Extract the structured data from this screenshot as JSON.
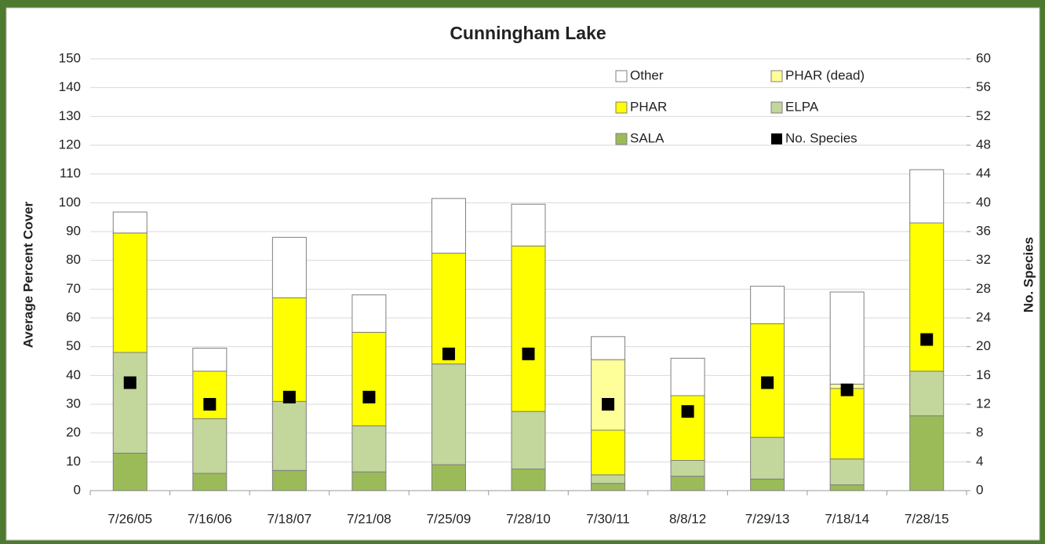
{
  "chart_data": {
    "type": "bar",
    "title": "Cunningham Lake",
    "y_label": "Average Percent Cover",
    "y2_label": "No. Species",
    "categories": [
      "7/26/05",
      "7/16/06",
      "7/18/07",
      "7/21/08",
      "7/25/09",
      "7/28/10",
      "7/30/11",
      "8/8/12",
      "7/29/13",
      "7/18/14",
      "7/28/15"
    ],
    "series": [
      {
        "name": "SALA",
        "type": "bar",
        "color": "#9bbb59",
        "values": [
          13,
          6,
          7,
          6.5,
          9,
          7.5,
          2.5,
          5,
          4,
          2,
          26
        ]
      },
      {
        "name": "ELPA",
        "type": "bar",
        "color": "#c3d69b",
        "values": [
          35,
          19,
          24,
          16,
          35,
          20,
          3,
          5.5,
          14.5,
          9,
          15.5
        ]
      },
      {
        "name": "PHAR",
        "type": "bar",
        "color": "#ffff00",
        "values": [
          41.5,
          16.5,
          36,
          32.5,
          38.5,
          57.5,
          15.5,
          22.5,
          39.5,
          24.5,
          51.5
        ]
      },
      {
        "name": "PHAR (dead)",
        "type": "bar",
        "color": "#ffff99",
        "values": [
          0,
          0,
          0,
          0,
          0,
          0,
          24.5,
          0,
          0,
          1.5,
          0
        ]
      },
      {
        "name": "Other",
        "type": "bar",
        "color": "#ffffff",
        "values": [
          7.3,
          8,
          21,
          13,
          19,
          14.5,
          8,
          13,
          13,
          32,
          18.5
        ]
      },
      {
        "name": "No. Species",
        "type": "scatter",
        "axis": "y2",
        "color": "#000000",
        "values": [
          15,
          12,
          13,
          13,
          19,
          19,
          12,
          11,
          15,
          14,
          21
        ]
      }
    ],
    "ylim": [
      0,
      150
    ],
    "yticks": [
      0,
      10,
      20,
      30,
      40,
      50,
      60,
      70,
      80,
      90,
      100,
      110,
      120,
      130,
      140,
      150
    ],
    "y2lim": [
      0,
      60
    ],
    "y2ticks": [
      0,
      4,
      8,
      12,
      16,
      20,
      24,
      28,
      32,
      36,
      40,
      44,
      48,
      52,
      56,
      60
    ],
    "grid": true
  }
}
